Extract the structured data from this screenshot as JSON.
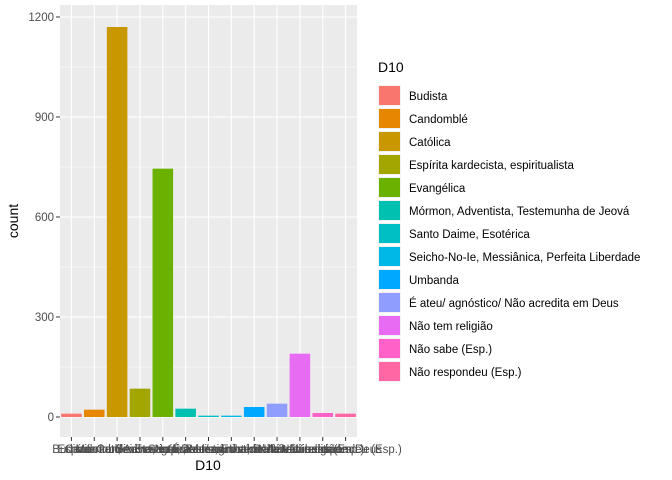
{
  "chart_data": {
    "type": "bar",
    "xlabel": "D10",
    "ylabel": "count",
    "ylim": [
      0,
      1200
    ],
    "yticks": [
      0,
      300,
      600,
      900,
      1200
    ],
    "grid": true,
    "legend_title": "D10",
    "legend_position": "right",
    "categories": [
      "Budista",
      "Candomblé",
      "Católica",
      "Espírita kardecista, espiritualista",
      "Evangélica",
      "Mórmon, Adventista, Testemunha de Jeová",
      "Santo Daime, Esotérica",
      "Seicho-No-Ie, Messiânica, Perfeita Liberdade",
      "Umbanda",
      "É ateu/ agnóstico/ Não acredita em Deus",
      "Não tem religião",
      "Não sabe (Esp.)",
      "Não respondeu (Esp.)"
    ],
    "values": [
      10,
      22,
      1170,
      85,
      745,
      25,
      4,
      4,
      30,
      40,
      190,
      12,
      10
    ],
    "colors": [
      "#F8766D",
      "#E58700",
      "#C99800",
      "#A3A500",
      "#6BB100",
      "#00C0AF",
      "#00BFC4",
      "#00B8E7",
      "#00A9FF",
      "#8F9DFF",
      "#E76BF3",
      "#FF61C9",
      "#FF67A4"
    ],
    "bar_colors_note_fix": "",
    "x_tick_labels": [
      "Budista",
      "Candomblé",
      "Católica",
      "Espírita kardecista, espiritualista",
      "Evangélica",
      "Mórmon, Adventista, Testemunha de Jeová",
      "Santo Daime, Esotérica",
      "Seicho-No-Ie, Messiânica, Perfeita Liberdade",
      "Umbanda",
      "É ateu/ agnóstico/ Não acredita em Deus",
      "Não tem religião",
      "Não sabe (Esp.)",
      "Não respondeu (Esp.)"
    ]
  }
}
